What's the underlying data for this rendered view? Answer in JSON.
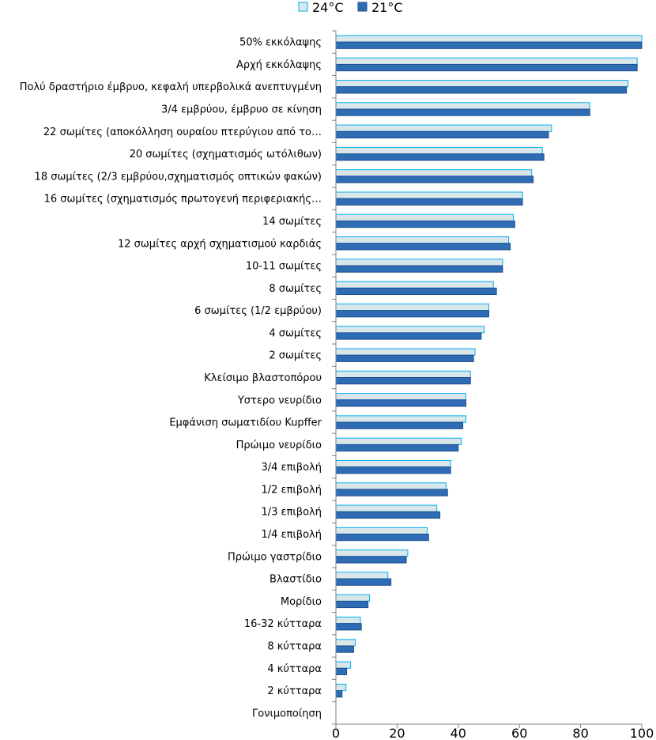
{
  "chart_data": {
    "type": "bar",
    "orientation": "horizontal",
    "categories": [
      "50% εκκόλαψης",
      "Αρχή εκκόλαψης",
      "Πολύ δραστήριο έμβρυο, κεφαλή υπερβολικά ανεπτυγμένη",
      "3/4 εμβρύου, έμβρυο σε κίνηση",
      "22 σωμίτες (αποκόλληση ουραίου πτερύγιου από το…",
      "20 σωμίτες (σχηματισμός ωτόλιθων)",
      "18 σωμίτες (2/3 εμβρύου,σχηματισμός οπτικών φακών)",
      "16 σωμίτες (σχηματισμός πρωτογενή περιφεριακής…",
      "14 σωμίτες",
      "12 σωμίτες αρχή σχηματισμού καρδιάς",
      "10-11 σωμίτες",
      "8 σωμίτες",
      "6 σωμίτες (1/2 εμβρύου)",
      "4 σωμίτες",
      "2 σωμίτες",
      "Κλείσιμο βλαστοπόρου",
      "Υστερο νευρίδιο",
      "Εμφάνιση σωματιδίου Kupffer",
      "Πρώιμο νευρίδιο",
      "3/4 επιβολή",
      "1/2 επιβολή",
      "1/3 επιβολή",
      "1/4 επιβολή",
      "Πρώιμο γαστρίδιο",
      "Βλαστίδιο",
      "Μορίδιο",
      "16-32 κύτταρα",
      "8 κύτταρα",
      "4 κύτταρα",
      "2 κύτταρα",
      "Γονιμοποίηση"
    ],
    "series": [
      {
        "name": "24°C",
        "color": "#d9e6ea",
        "border": "#00b0f0",
        "values": [
          100,
          98.5,
          95.5,
          83,
          70.5,
          67.5,
          64,
          61,
          58,
          56.5,
          54.5,
          51.5,
          50,
          48.5,
          45.5,
          44,
          42.5,
          42.5,
          41,
          37.5,
          36,
          33,
          29.8,
          23.5,
          17,
          11,
          8,
          6.3,
          4.8,
          3.3,
          0
        ]
      },
      {
        "name": "21°C",
        "color": "#2e6db5",
        "border": "#1f4e8c",
        "values": [
          100,
          98.5,
          95,
          83,
          69.5,
          68,
          64.5,
          61,
          58.5,
          57,
          54.5,
          52.5,
          50,
          47.5,
          45,
          44,
          42.5,
          41.5,
          40,
          37.5,
          36.5,
          34,
          30.3,
          23,
          18,
          10.5,
          8.3,
          5.8,
          3.5,
          2,
          0
        ]
      }
    ],
    "xlim": [
      0,
      100
    ],
    "xticks": [
      "0",
      "20",
      "40",
      "60",
      "80",
      "100"
    ],
    "legend_position": "top",
    "grid": false
  }
}
